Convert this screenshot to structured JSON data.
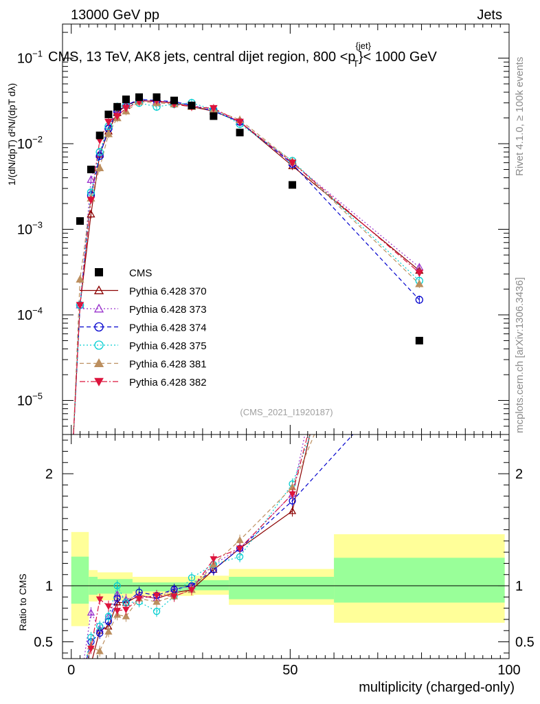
{
  "header": {
    "left": "13000 GeV pp",
    "right": "Jets"
  },
  "title_main": "CMS, 13 TeV, AK8 jets, central dijet region, 800 <p",
  "title_sup": "{jet}",
  "title_sub": "T",
  "title_end": "}< 1000 GeV",
  "side_right_top": "Rivet 4.1.0, ≥ 100k events",
  "side_right_bottom": "mcplots.cern.ch [arXiv:1306.3436]",
  "analysis_tag": "(CMS_2021_I1920187)",
  "ylabel_main": "1/(dN/dpT) d²N/(dpT dλ)",
  "ylabel_ratio": "Ratio to CMS",
  "xlabel": "multiplicity (charged-only)",
  "legend": [
    {
      "label": "CMS"
    },
    {
      "label": "Pythia 6.428 370"
    },
    {
      "label": "Pythia 6.428 373"
    },
    {
      "label": "Pythia 6.428 374"
    },
    {
      "label": "Pythia 6.428 375"
    },
    {
      "label": "Pythia 6.428 381"
    },
    {
      "label": "Pythia 6.428 382"
    }
  ],
  "chart_data": {
    "type": "scatter",
    "title": "CMS, 13 TeV, AK8 jets, central dijet region, 800 < pT^{jet} < 1000 GeV",
    "xlabel": "multiplicity (charged-only)",
    "ylabel": "1/(dN/dpT) d²N/(dpT dλ)",
    "xlim": [
      -2,
      100
    ],
    "ylim": [
      4e-06,
      0.25
    ],
    "yscale": "log",
    "x_ticks": [
      0,
      50,
      100
    ],
    "y_ticks": [
      "10^-5",
      "10^-4",
      "10^-3",
      "10^-2",
      "10^-1"
    ],
    "ratio_ylim": [
      0.35,
      2.35
    ],
    "ratio_yticks": [
      0.5,
      1,
      2
    ],
    "x": [
      2,
      4.5,
      6.5,
      8.5,
      10.5,
      12.5,
      15.5,
      19.5,
      23.5,
      27.5,
      32.5,
      38.5,
      50.5,
      79.5
    ],
    "series": [
      {
        "name": "CMS",
        "color": "#000000",
        "marker": "square-filled",
        "values": [
          0.00125,
          0.005,
          0.0125,
          0.022,
          0.027,
          0.033,
          0.035,
          0.035,
          0.032,
          0.028,
          0.021,
          0.0135,
          0.0033,
          5e-05
        ]
      },
      {
        "name": "Pythia 6.428 370",
        "color": "#8b0000",
        "marker": "triangle-up-open",
        "line": "solid",
        "values": [
          0.00013,
          0.0015,
          0.0075,
          0.014,
          0.023,
          0.028,
          0.032,
          0.031,
          0.03,
          0.027,
          0.024,
          0.018,
          0.0055,
          0.00033
        ]
      },
      {
        "name": "Pythia 6.428 373",
        "color": "#9932cc",
        "marker": "triangle-up-open",
        "line": "dotted",
        "values": [
          0.00013,
          0.0038,
          0.0077,
          0.016,
          0.025,
          0.029,
          0.032,
          0.031,
          0.031,
          0.028,
          0.025,
          0.018,
          0.006,
          0.00036
        ]
      },
      {
        "name": "Pythia 6.428 374",
        "color": "#0000cd",
        "marker": "circle-open",
        "line": "dashed",
        "values": [
          0.00013,
          0.0025,
          0.0072,
          0.015,
          0.024,
          0.028,
          0.033,
          0.032,
          0.031,
          0.028,
          0.024,
          0.018,
          0.0058,
          0.00015
        ]
      },
      {
        "name": "Pythia 6.428 375",
        "color": "#00ced1",
        "marker": "circle-open",
        "line": "dotted",
        "values": [
          0.00013,
          0.0027,
          0.008,
          0.016,
          0.027,
          0.028,
          0.03,
          0.027,
          0.029,
          0.03,
          0.025,
          0.017,
          0.0063,
          0.00025
        ]
      },
      {
        "name": "Pythia 6.428 381",
        "color": "#bc8f5f",
        "marker": "triangle-up-filled",
        "line": "dashed",
        "values": [
          0.00026,
          0.0023,
          0.0052,
          0.013,
          0.02,
          0.024,
          0.031,
          0.03,
          0.029,
          0.027,
          0.025,
          0.019,
          0.0062,
          0.00023
        ]
      },
      {
        "name": "Pythia 6.428 382",
        "color": "#dc143c",
        "marker": "triangle-down-filled",
        "line": "dashdot",
        "values": [
          0.00013,
          0.0022,
          0.011,
          0.018,
          0.021,
          0.026,
          0.031,
          0.032,
          0.029,
          0.027,
          0.026,
          0.018,
          0.006,
          0.00031
        ]
      }
    ],
    "ratio_bands": [
      {
        "x0": 0,
        "x1": 4,
        "inner": [
          0.84,
          1.26
        ],
        "outer": [
          0.64,
          1.48
        ]
      },
      {
        "x0": 4,
        "x1": 6,
        "inner": [
          0.92,
          1.08
        ],
        "outer": [
          0.86,
          1.14
        ]
      },
      {
        "x0": 6,
        "x1": 14,
        "inner": [
          0.93,
          1.06
        ],
        "outer": [
          0.87,
          1.12
        ]
      },
      {
        "x0": 14,
        "x1": 28,
        "inner": [
          0.95,
          1.03
        ],
        "outer": [
          0.91,
          1.08
        ]
      },
      {
        "x0": 28,
        "x1": 36,
        "inner": [
          0.96,
          1.05
        ],
        "outer": [
          0.92,
          1.09
        ]
      },
      {
        "x0": 36,
        "x1": 60,
        "inner": [
          0.88,
          1.08
        ],
        "outer": [
          0.83,
          1.15
        ]
      },
      {
        "x0": 60,
        "x1": 99,
        "inner": [
          0.85,
          1.25
        ],
        "outer": [
          0.67,
          1.46
        ]
      }
    ]
  }
}
